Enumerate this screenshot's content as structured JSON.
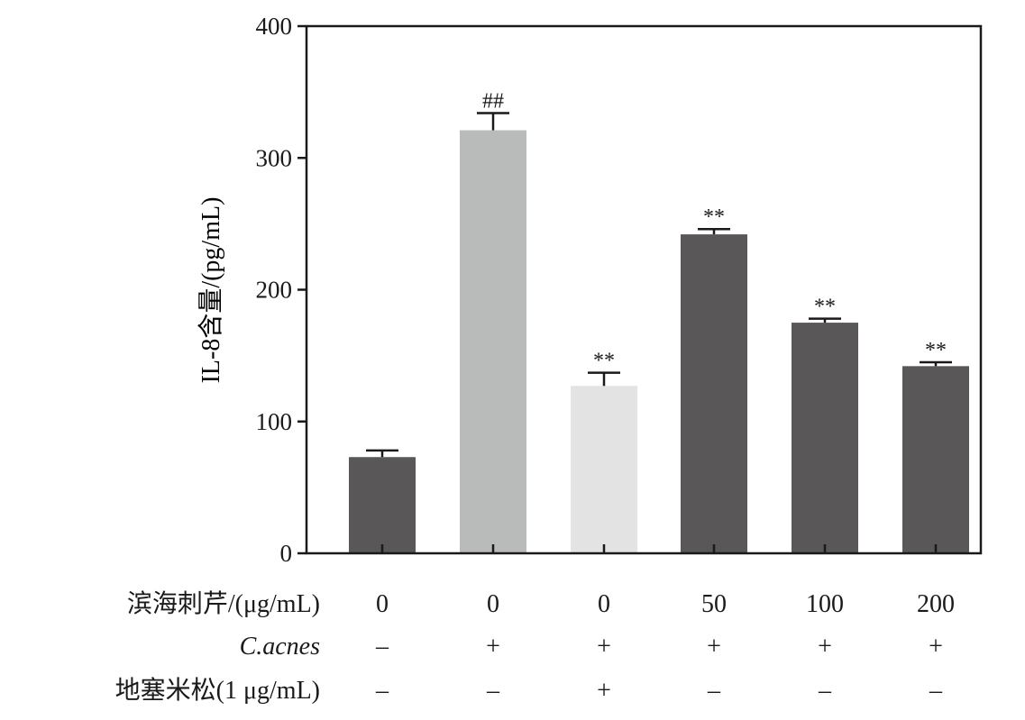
{
  "chart_data": {
    "type": "bar",
    "title": "",
    "xlabel": "",
    "ylabel": "IL-8含量/(pg/mL)",
    "ylim": [
      0,
      400
    ],
    "yticks": [
      0,
      100,
      200,
      300,
      400
    ],
    "grid": false,
    "legend": "none",
    "bars": [
      {
        "value": 73,
        "error": 5,
        "color": "#595758",
        "sig": ""
      },
      {
        "value": 321,
        "error": 13,
        "color": "#b9bbbb",
        "sig": "##"
      },
      {
        "value": 127,
        "error": 10,
        "color": "#e3e3e3",
        "sig": "**"
      },
      {
        "value": 242,
        "error": 4,
        "color": "#595758",
        "sig": "**"
      },
      {
        "value": 175,
        "error": 3,
        "color": "#595758",
        "sig": "**"
      },
      {
        "value": 142,
        "error": 3,
        "color": "#595758",
        "sig": "**"
      }
    ],
    "conditions": [
      {
        "label": "滨海刺芹/(μg/mL)",
        "italic": false,
        "values": [
          "0",
          "0",
          "0",
          "50",
          "100",
          "200"
        ]
      },
      {
        "label": "C.acnes",
        "italic": true,
        "values": [
          "–",
          "+",
          "+",
          "+",
          "+",
          "+"
        ]
      },
      {
        "label": "地塞米松(1 μg/mL)",
        "italic": false,
        "values": [
          "–",
          "–",
          "+",
          "–",
          "–",
          "–"
        ]
      }
    ]
  }
}
